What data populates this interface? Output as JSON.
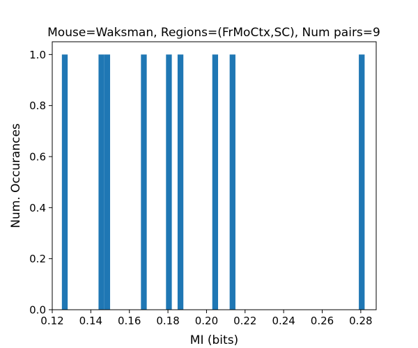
{
  "chart_data": {
    "type": "bar",
    "title": "Mouse=Waksman, Regions=(FrMoCtx,SC), Num pairs=9",
    "xlabel": "MI (bits)",
    "ylabel": "Num. Occurances",
    "xlim": [
      0.12,
      0.288
    ],
    "ylim": [
      0,
      1.05
    ],
    "bin_width": 0.003,
    "x_ticks": [
      "0.12",
      "0.14",
      "0.16",
      "0.18",
      "0.20",
      "0.22",
      "0.24",
      "0.26",
      "0.28"
    ],
    "y_ticks": [
      "0.0",
      "0.2",
      "0.4",
      "0.6",
      "0.8",
      "1.0"
    ],
    "bars": [
      {
        "x": 0.1265,
        "value": 1
      },
      {
        "x": 0.1455,
        "value": 1
      },
      {
        "x": 0.1485,
        "value": 1
      },
      {
        "x": 0.1675,
        "value": 1
      },
      {
        "x": 0.1805,
        "value": 1
      },
      {
        "x": 0.1865,
        "value": 1
      },
      {
        "x": 0.2045,
        "value": 1
      },
      {
        "x": 0.2135,
        "value": 1
      },
      {
        "x": 0.2805,
        "value": 1
      }
    ],
    "bar_color": "#1f77b4",
    "grid": false,
    "legend": "none"
  }
}
